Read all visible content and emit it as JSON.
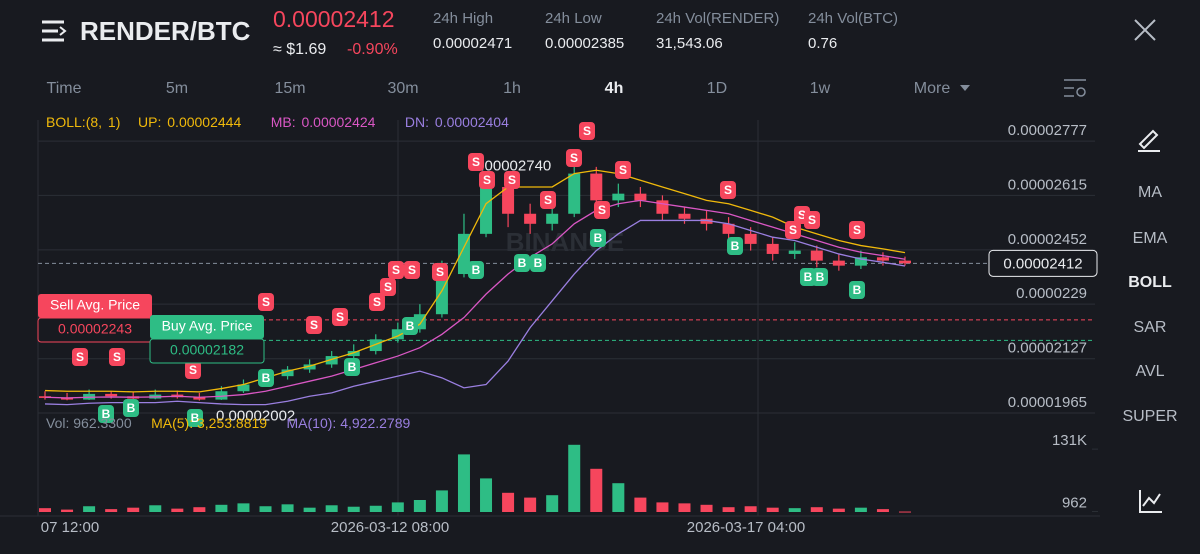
{
  "header": {
    "pair": "RENDER/BTC",
    "usd": "≈ $1.69",
    "change": "-0.90%",
    "stats": [
      {
        "label": "24h High",
        "value": "0.00002471"
      },
      {
        "label": "24h Low",
        "value": "0.00002385"
      },
      {
        "label": "24h Vol(RENDER)",
        "value": "31,543.06"
      },
      {
        "label": "24h Vol(BTC)",
        "value": "0.76"
      }
    ]
  },
  "timeframes": [
    "Time",
    "5m",
    "15m",
    "30m",
    "1h",
    "4h",
    "1D",
    "1w",
    "More"
  ],
  "sidebar": [
    "MA",
    "EMA",
    "BOLL",
    "SAR",
    "AVL",
    "SUPER"
  ],
  "chart_data": {
    "type": "candlestick",
    "indicator": {
      "name": "BOLL:(8, 1)",
      "up": "UP: 0.00002444",
      "mb": "MB: 0.00002424",
      "dn": "DN: 0.00002404"
    },
    "volume_legend": {
      "vol": "Vol: 962.3300",
      "ma5": "MA(5): 3,253.8819",
      "ma10": "MA(10): 4,922.2789"
    },
    "last_price": 2.412e-05,
    "sell_avg": {
      "label": "Sell Avg. Price",
      "value": 2.243e-05
    },
    "buy_avg": {
      "label": "Buy Avg. Price",
      "value": 2.182e-05
    },
    "max_label": {
      "value": 2.74e-05,
      "label": "0.00002740"
    },
    "min_label": 2.002e-05,
    "sell_marker": "S",
    "buy_marker": "B",
    "ylim": [
      1.959e-05,
      2.84e-05
    ],
    "yticks": [
      2.777e-05,
      2.615e-05,
      2.452e-05,
      2.29e-05,
      2.127e-05,
      1.965e-05
    ],
    "vlim": [
      0,
      150000
    ],
    "vticks": [
      {
        "value": 131000,
        "label": "131K"
      },
      {
        "value": 962.33,
        "label": "962"
      }
    ],
    "xtick_labels": [
      "07 12:00",
      "2026-03-12 08:00",
      "2026-03-17 04:00"
    ],
    "colors": {
      "up": "#2ebd85",
      "down": "#f6465d",
      "boll_up": "#f0b90b",
      "boll_mb": "#d957c4",
      "boll_dn": "#9a7fe0"
    },
    "candles": [
      [
        2.015e-05,
        2.03e-05,
        2.005e-05,
        2.01e-05
      ],
      [
        2.01e-05,
        2.025e-05,
        2.003e-05,
        2.005e-05
      ],
      [
        2.005e-05,
        2.035e-05,
        2.004e-05,
        2.022e-05
      ],
      [
        2.022e-05,
        2.03e-05,
        2.008e-05,
        2.015e-05
      ],
      [
        2.015e-05,
        2.028e-05,
        2.004e-05,
        2.008e-05
      ],
      [
        2.008e-05,
        2.035e-05,
        2.006e-05,
        2.02e-05
      ],
      [
        2.02e-05,
        2.032e-05,
        2.008e-05,
        2.012e-05
      ],
      [
        2.012e-05,
        2.025e-05,
        2.002e-05,
        2.005e-05
      ],
      [
        2.005e-05,
        2.045e-05,
        2.004e-05,
        2.03e-05
      ],
      [
        2.03e-05,
        2.065e-05,
        2.025e-05,
        2.05e-05
      ],
      [
        2.05e-05,
        2.09e-05,
        2.045e-05,
        2.075e-05
      ],
      [
        2.075e-05,
        2.105e-05,
        2.065e-05,
        2.095e-05
      ],
      [
        2.095e-05,
        2.125e-05,
        2.085e-05,
        2.11e-05
      ],
      [
        2.11e-05,
        2.15e-05,
        2.1e-05,
        2.135e-05
      ],
      [
        2.135e-05,
        2.17e-05,
        2.12e-05,
        2.15e-05
      ],
      [
        2.15e-05,
        2.2e-05,
        2.14e-05,
        2.185e-05
      ],
      [
        2.185e-05,
        2.235e-05,
        2.175e-05,
        2.215e-05
      ],
      [
        2.215e-05,
        2.29e-05,
        2.205e-05,
        2.26e-05
      ],
      [
        2.26e-05,
        2.42e-05,
        2.25e-05,
        2.38e-05
      ],
      [
        2.38e-05,
        2.56e-05,
        2.37e-05,
        2.5e-05
      ],
      [
        2.5e-05,
        2.68e-05,
        2.49e-05,
        2.64e-05
      ],
      [
        2.64e-05,
        2.66e-05,
        2.52e-05,
        2.56e-05
      ],
      [
        2.56e-05,
        2.59e-05,
        2.5e-05,
        2.53e-05
      ],
      [
        2.53e-05,
        2.6e-05,
        2.51e-05,
        2.56e-05
      ],
      [
        2.56e-05,
        2.74e-05,
        2.55e-05,
        2.68e-05
      ],
      [
        2.68e-05,
        2.7e-05,
        2.56e-05,
        2.6e-05
      ],
      [
        2.6e-05,
        2.65e-05,
        2.58e-05,
        2.62e-05
      ],
      [
        2.62e-05,
        2.64e-05,
        2.58e-05,
        2.6e-05
      ],
      [
        2.6e-05,
        2.615e-05,
        2.54e-05,
        2.56e-05
      ],
      [
        2.56e-05,
        2.58e-05,
        2.53e-05,
        2.545e-05
      ],
      [
        2.545e-05,
        2.57e-05,
        2.51e-05,
        2.53e-05
      ],
      [
        2.53e-05,
        2.55e-05,
        2.48e-05,
        2.5e-05
      ],
      [
        2.5e-05,
        2.52e-05,
        2.45e-05,
        2.47e-05
      ],
      [
        2.47e-05,
        2.49e-05,
        2.42e-05,
        2.44e-05
      ],
      [
        2.44e-05,
        2.475e-05,
        2.425e-05,
        2.45e-05
      ],
      [
        2.45e-05,
        2.465e-05,
        2.4e-05,
        2.42e-05
      ],
      [
        2.42e-05,
        2.44e-05,
        2.39e-05,
        2.405e-05
      ],
      [
        2.405e-05,
        2.45e-05,
        2.395e-05,
        2.43e-05
      ],
      [
        2.43e-05,
        2.445e-05,
        2.405e-05,
        2.42e-05
      ],
      [
        2.42e-05,
        2.432e-05,
        2.405e-05,
        2.412e-05
      ]
    ],
    "volumes": [
      8000,
      5000,
      12000,
      6000,
      9000,
      14000,
      7000,
      10000,
      15000,
      18000,
      12000,
      16000,
      9000,
      14000,
      11000,
      13000,
      20000,
      25000,
      45000,
      120000,
      70000,
      40000,
      30000,
      35000,
      140000,
      90000,
      60000,
      30000,
      20000,
      18000,
      15000,
      10000,
      12000,
      9000,
      8000,
      10000,
      7000,
      9000,
      6000,
      962.33
    ],
    "boll_up": [
      2.032e-05,
      2.03e-05,
      2.03e-05,
      2.03e-05,
      2.028e-05,
      2.03e-05,
      2.03e-05,
      2.028e-05,
      2.038e-05,
      2.05e-05,
      2.07e-05,
      2.09e-05,
      2.105e-05,
      2.125e-05,
      2.145e-05,
      2.17e-05,
      2.195e-05,
      2.23e-05,
      2.33e-05,
      2.46e-05,
      2.59e-05,
      2.64e-05,
      2.64e-05,
      2.64e-05,
      2.68e-05,
      2.69e-05,
      2.68e-05,
      2.66e-05,
      2.64e-05,
      2.62e-05,
      2.6e-05,
      2.59e-05,
      2.57e-05,
      2.55e-05,
      2.52e-05,
      2.5e-05,
      2.48e-05,
      2.465e-05,
      2.455e-05,
      2.444e-05
    ],
    "boll_mb": [
      2.012e-05,
      2.01e-05,
      2.012e-05,
      2.013e-05,
      2.012e-05,
      2.013e-05,
      2.015e-05,
      2.012e-05,
      2.015e-05,
      2.02e-05,
      2.03e-05,
      2.045e-05,
      2.06e-05,
      2.075e-05,
      2.095e-05,
      2.115e-05,
      2.135e-05,
      2.16e-05,
      2.2e-05,
      2.25e-05,
      2.32e-05,
      2.38e-05,
      2.43e-05,
      2.47e-05,
      2.53e-05,
      2.57e-05,
      2.59e-05,
      2.6e-05,
      2.59e-05,
      2.58e-05,
      2.57e-05,
      2.56e-05,
      2.54e-05,
      2.52e-05,
      2.5e-05,
      2.48e-05,
      2.46e-05,
      2.445e-05,
      2.435e-05,
      2.424e-05
    ],
    "boll_dn": [
      1.992e-05,
      1.99e-05,
      1.994e-05,
      1.996e-05,
      1.996e-05,
      1.996e-05,
      2e-05,
      1.996e-05,
      1.992e-05,
      1.99e-05,
      1.99e-05,
      2e-05,
      2.015e-05,
      2.025e-05,
      2.045e-05,
      2.06e-05,
      2.075e-05,
      2.09e-05,
      2.07e-05,
      2.04e-05,
      2.05e-05,
      2.12e-05,
      2.22e-05,
      2.3e-05,
      2.38e-05,
      2.45e-05,
      2.5e-05,
      2.54e-05,
      2.54e-05,
      2.54e-05,
      2.54e-05,
      2.53e-05,
      2.51e-05,
      2.49e-05,
      2.48e-05,
      2.46e-05,
      2.44e-05,
      2.425e-05,
      2.415e-05,
      2.404e-05
    ]
  }
}
